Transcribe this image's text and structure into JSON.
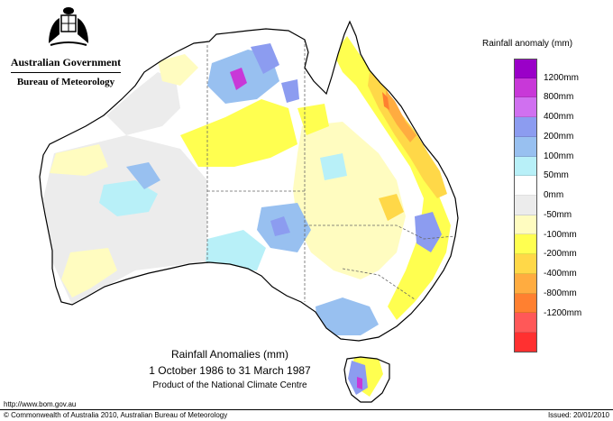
{
  "header": {
    "government": "Australian Government",
    "bureau": "Bureau of Meteorology"
  },
  "caption": {
    "title": "Rainfall Anomalies (mm)",
    "period": "1 October 1986 to 31 March 1987",
    "product": "Product of the National Climate Centre"
  },
  "legend": {
    "title": "Rainfall anomaly (mm)",
    "colors": [
      "#9a00c8",
      "#c838d8",
      "#d070f0",
      "#8c9cf0",
      "#98c0f0",
      "#b8f0f8",
      "#ffffff",
      "#ececec",
      "#fffcc0",
      "#ffff50",
      "#ffd848",
      "#ffac40",
      "#ff8030",
      "#ff5858",
      "#ff3030"
    ],
    "ticks": [
      "1200mm",
      "800mm",
      "400mm",
      "200mm",
      "100mm",
      "50mm",
      "0mm",
      "-50mm",
      "-100mm",
      "-200mm",
      "-400mm",
      "-800mm",
      "-1200mm"
    ]
  },
  "footer": {
    "url": "http://www.bom.gov.au",
    "copyright": "© Commonwealth of Australia 2010, Australian Bureau of Meteorology",
    "issued": "Issued: 20/01/2010"
  }
}
